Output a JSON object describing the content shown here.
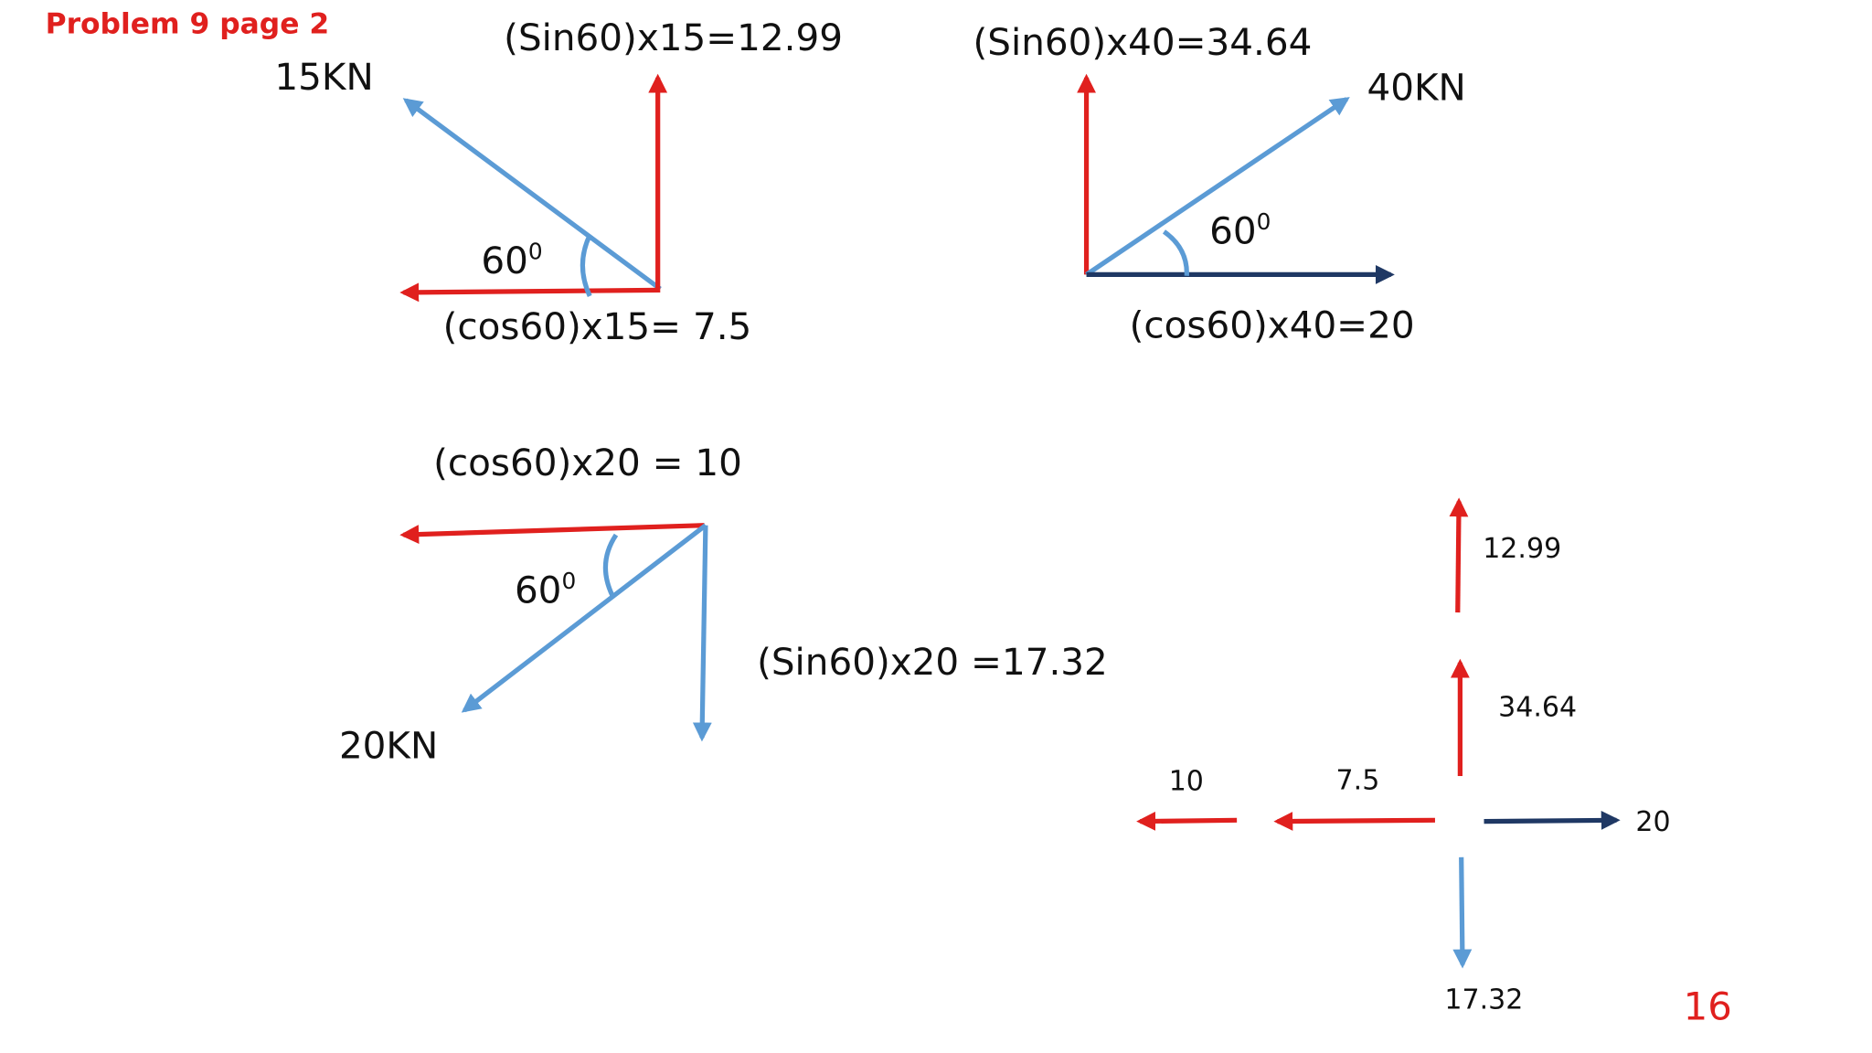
{
  "title": "Problem 9 page 2",
  "page_number": "16",
  "diagrams": [
    {
      "force": "15KN",
      "vertical": "(Sin60)x15=12.99",
      "horizontal": "(cos60)x15= 7.5",
      "angle": "60",
      "angle_unit": "0"
    },
    {
      "force": "40KN",
      "vertical": "(Sin60)x40=34.64",
      "horizontal": "(cos60)x40=20",
      "angle": "60",
      "angle_unit": "0"
    },
    {
      "force": "20KN",
      "vertical": "(Sin60)x20 =17.32",
      "horizontal": "(cos60)x20 = 10",
      "angle": "60",
      "angle_unit": "0"
    }
  ],
  "summary": {
    "labels": [
      "12.99",
      "34.64",
      "10",
      "7.5",
      "20",
      "17.32"
    ]
  }
}
